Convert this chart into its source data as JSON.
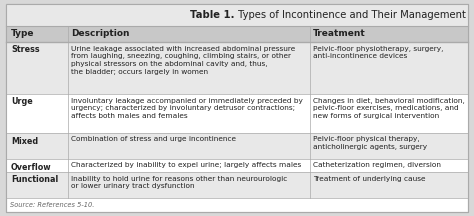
{
  "title_bold": "Table 1.",
  "title_rest": " Types of Incontinence and Their Management",
  "headers": [
    "Type",
    "Description",
    "Treatment"
  ],
  "rows": [
    {
      "type": "Stress",
      "description": "Urine leakage associated with increased abdominal pressure\nfrom laughing, sneezing, coughing, climbing stairs, or other\nphysical stressors on the abdominal cavity and, thus,\nthe bladder; occurs largely in women",
      "treatment": "Pelvic-floor physiotherapy, surgery,\nanti-incontinence devices",
      "bg": "#e8e8e8"
    },
    {
      "type": "Urge",
      "description": "Involuntary leakage accompanied or immediately preceded by\nurgency; characterized by involuntary detrusor contractions;\naffects both males and females",
      "treatment": "Changes in diet, behavioral modification,\npelvic-floor exercises, medications, and\nnew forms of surgical intervention",
      "bg": "#ffffff"
    },
    {
      "type": "Mixed",
      "description": "Combination of stress and urge incontinence",
      "treatment": "Pelvic-floor physical therapy,\nanticholinergic agents, surgery",
      "bg": "#e8e8e8"
    },
    {
      "type": "Overflow",
      "description": "Characterized by inability to expel urine; largely affects males",
      "treatment": "Catheterization regimen, diversion",
      "bg": "#ffffff"
    },
    {
      "type": "Functional",
      "description": "Inability to hold urine for reasons other than neurourologic\nor lower urinary tract dysfunction",
      "treatment": "Treatment of underlying cause",
      "bg": "#e8e8e8"
    }
  ],
  "footer": "Source: References 5-10.",
  "header_bg": "#c8c8c8",
  "border_color": "#aaaaaa",
  "text_color": "#222222",
  "fig_bg": "#d8d8d8",
  "table_bg": "#ffffff",
  "title_bg": "#e8e8e8"
}
